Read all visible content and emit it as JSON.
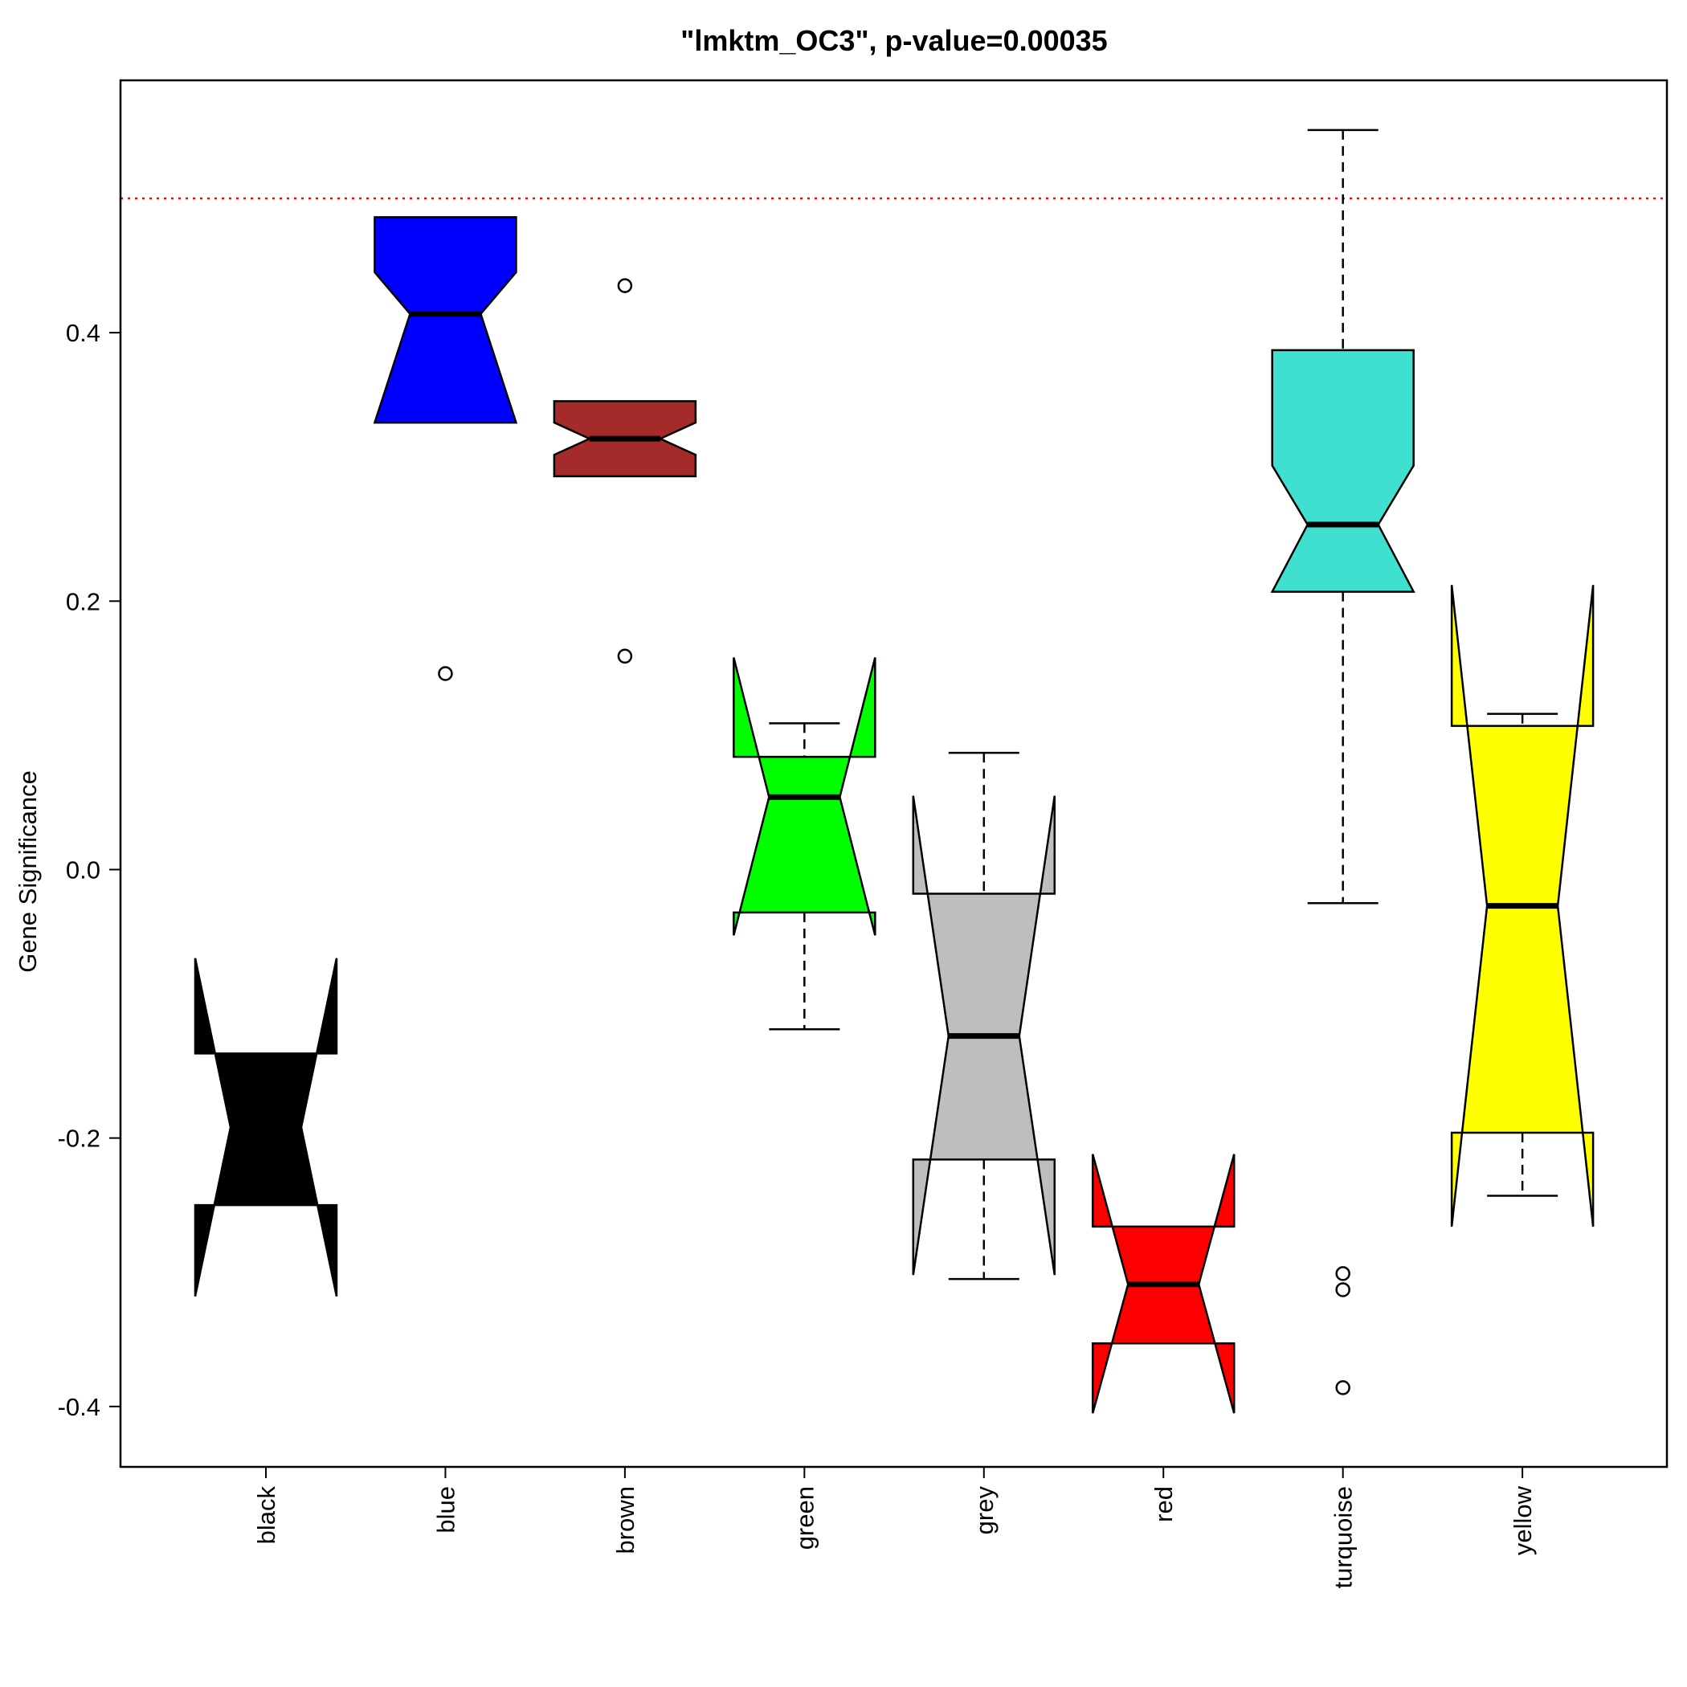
{
  "chart_data": {
    "type": "boxplot",
    "notched": true,
    "title": "\"lmktm_OC3\", p-value=0.00035",
    "xlabel": "",
    "ylabel": "Gene Significance",
    "ylim": [
      -0.445,
      0.588
    ],
    "yticks": [
      -0.4,
      -0.2,
      0.0,
      0.2,
      0.4
    ],
    "ytick_labels": [
      "-0.4",
      "-0.2",
      "0.0",
      "0.2",
      "0.4"
    ],
    "reference_line": {
      "y": 0.5,
      "color": "#ff0000",
      "style": "dotted"
    },
    "grid": false,
    "legend": "none",
    "categories": [
      "black",
      "blue",
      "brown",
      "green",
      "grey",
      "red",
      "turquoise",
      "yellow"
    ],
    "boxes": [
      {
        "name": "black",
        "color": "#000000",
        "whisker_low": -0.25,
        "q1": -0.25,
        "median": -0.192,
        "q3": -0.137,
        "whisker_high": -0.137,
        "notch_low": -0.318,
        "notch_high": -0.066,
        "outliers": []
      },
      {
        "name": "blue",
        "color": "#0000ff",
        "whisker_low": 0.333,
        "q1": 0.333,
        "median": 0.414,
        "q3": 0.486,
        "whisker_high": 0.486,
        "notch_low": 0.333,
        "notch_high": 0.445,
        "outliers": [
          0.146
        ]
      },
      {
        "name": "brown",
        "color": "#a52a2a",
        "whisker_low": 0.293,
        "q1": 0.293,
        "median": 0.321,
        "q3": 0.349,
        "whisker_high": 0.349,
        "notch_low": 0.309,
        "notch_high": 0.333,
        "outliers": [
          0.435,
          0.159
        ]
      },
      {
        "name": "green",
        "color": "#00ff00",
        "whisker_low": -0.119,
        "q1": -0.032,
        "median": 0.054,
        "q3": 0.084,
        "whisker_high": 0.109,
        "notch_low": -0.049,
        "notch_high": 0.158,
        "outliers": []
      },
      {
        "name": "grey",
        "color": "#bebebe",
        "whisker_low": -0.305,
        "q1": -0.216,
        "median": -0.124,
        "q3": -0.018,
        "whisker_high": 0.087,
        "notch_low": -0.302,
        "notch_high": 0.055,
        "outliers": []
      },
      {
        "name": "red",
        "color": "#ff0000",
        "whisker_low": -0.353,
        "q1": -0.353,
        "median": -0.309,
        "q3": -0.266,
        "whisker_high": -0.266,
        "notch_low": -0.405,
        "notch_high": -0.212,
        "outliers": []
      },
      {
        "name": "turquoise",
        "color": "#40e0d0",
        "whisker_low": -0.025,
        "q1": 0.207,
        "median": 0.257,
        "q3": 0.387,
        "whisker_high": 0.551,
        "notch_low": 0.207,
        "notch_high": 0.301,
        "outliers": [
          -0.301,
          -0.313,
          -0.386
        ]
      },
      {
        "name": "yellow",
        "color": "#ffff00",
        "whisker_low": -0.243,
        "q1": -0.196,
        "median": -0.027,
        "q3": 0.107,
        "whisker_high": 0.116,
        "notch_low": -0.266,
        "notch_high": 0.212,
        "outliers": []
      }
    ]
  }
}
